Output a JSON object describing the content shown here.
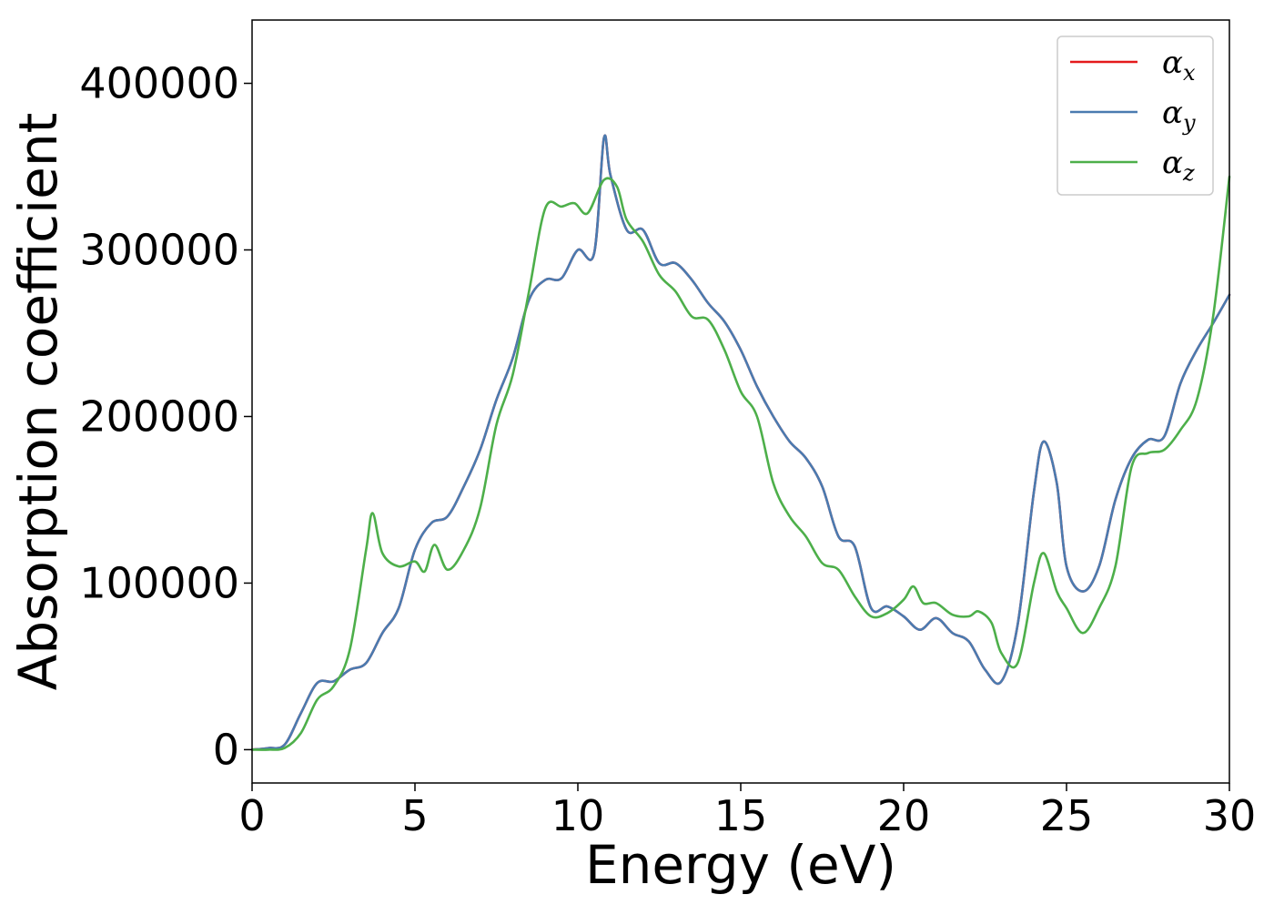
{
  "chart_data": {
    "type": "line",
    "xlabel": "Energy (eV)",
    "ylabel": "Absorption coefficient",
    "xlim": [
      0,
      30
    ],
    "ylim": [
      -20000,
      438000
    ],
    "xticks": [
      0,
      5,
      10,
      15,
      20,
      25,
      30
    ],
    "xtick_labels": [
      "0",
      "5",
      "10",
      "15",
      "20",
      "25",
      "30"
    ],
    "yticks": [
      0,
      100000,
      200000,
      300000,
      400000
    ],
    "ytick_labels": [
      "0",
      "100000",
      "200000",
      "300000",
      "400000"
    ],
    "grid": false,
    "legend_position": "top-right",
    "series": [
      {
        "name": "αx",
        "legend_main": "α",
        "legend_sub": "x",
        "color": "#e41a1c",
        "x": [
          0,
          0.5,
          1,
          1.5,
          2,
          2.5,
          3,
          3.5,
          4,
          4.5,
          5,
          5.5,
          6,
          6.5,
          7,
          7.5,
          8,
          8.5,
          9,
          9.5,
          10,
          10.5,
          10.8,
          11,
          11.5,
          12,
          12.5,
          13,
          13.5,
          14,
          14.5,
          15,
          15.5,
          16,
          16.5,
          17,
          17.5,
          18,
          18.5,
          19,
          19.5,
          20,
          20.5,
          21,
          21.5,
          22,
          22.5,
          23,
          23.5,
          24,
          24.3,
          24.7,
          25,
          25.5,
          26,
          26.5,
          27,
          27.5,
          28,
          28.5,
          29,
          29.5,
          30
        ],
        "values": [
          0,
          1000,
          3000,
          22000,
          40000,
          41000,
          48000,
          52000,
          70000,
          85000,
          120000,
          136000,
          140000,
          158000,
          180000,
          210000,
          235000,
          270000,
          282000,
          283000,
          300000,
          298000,
          367000,
          345000,
          312000,
          312000,
          292000,
          292000,
          282000,
          268000,
          257000,
          240000,
          218000,
          200000,
          185000,
          175000,
          158000,
          128000,
          122000,
          85000,
          86000,
          80000,
          72000,
          79000,
          70000,
          65000,
          48000,
          41000,
          75000,
          155000,
          185000,
          160000,
          110000,
          95000,
          110000,
          150000,
          175000,
          186000,
          188000,
          220000,
          240000,
          256000,
          273000
        ]
      },
      {
        "name": "αy",
        "legend_main": "α",
        "legend_sub": "y",
        "color": "#4a7bb0",
        "x": [
          0,
          0.5,
          1,
          1.5,
          2,
          2.5,
          3,
          3.5,
          4,
          4.5,
          5,
          5.5,
          6,
          6.5,
          7,
          7.5,
          8,
          8.5,
          9,
          9.5,
          10,
          10.5,
          10.8,
          11,
          11.5,
          12,
          12.5,
          13,
          13.5,
          14,
          14.5,
          15,
          15.5,
          16,
          16.5,
          17,
          17.5,
          18,
          18.5,
          19,
          19.5,
          20,
          20.5,
          21,
          21.5,
          22,
          22.5,
          23,
          23.5,
          24,
          24.3,
          24.7,
          25,
          25.5,
          26,
          26.5,
          27,
          27.5,
          28,
          28.5,
          29,
          29.5,
          30
        ],
        "values": [
          0,
          1000,
          3000,
          22000,
          40000,
          41000,
          48000,
          52000,
          70000,
          85000,
          120000,
          136000,
          140000,
          158000,
          180000,
          210000,
          235000,
          270000,
          282000,
          283000,
          300000,
          298000,
          367000,
          345000,
          312000,
          312000,
          292000,
          292000,
          282000,
          268000,
          257000,
          240000,
          218000,
          200000,
          185000,
          175000,
          158000,
          128000,
          122000,
          85000,
          86000,
          80000,
          72000,
          79000,
          70000,
          65000,
          48000,
          41000,
          75000,
          155000,
          185000,
          160000,
          110000,
          95000,
          110000,
          150000,
          175000,
          186000,
          188000,
          220000,
          240000,
          256000,
          273000
        ]
      },
      {
        "name": "αz",
        "legend_main": "α",
        "legend_sub": "z",
        "color": "#4daf4a",
        "x": [
          0,
          0.5,
          1,
          1.5,
          2,
          2.5,
          3,
          3.5,
          3.7,
          4,
          4.5,
          5,
          5.3,
          5.6,
          6,
          6.5,
          7,
          7.5,
          8,
          8.5,
          9,
          9.5,
          9.9,
          10.3,
          10.8,
          11.2,
          11.5,
          12,
          12.5,
          13,
          13.5,
          14,
          14.5,
          15,
          15.5,
          16,
          16.5,
          17,
          17.5,
          18,
          18.5,
          19,
          19.5,
          20,
          20.3,
          20.6,
          21,
          21.5,
          22,
          22.3,
          22.7,
          23,
          23.5,
          24,
          24.3,
          24.7,
          25,
          25.5,
          26,
          26.5,
          27,
          27.5,
          28,
          28.5,
          29,
          29.5,
          30
        ],
        "values": [
          0,
          0,
          1000,
          10000,
          30000,
          38000,
          60000,
          120000,
          142000,
          118000,
          110000,
          113000,
          107000,
          123000,
          108000,
          120000,
          145000,
          195000,
          225000,
          275000,
          325000,
          326000,
          328000,
          322000,
          342000,
          338000,
          318000,
          305000,
          285000,
          275000,
          260000,
          258000,
          240000,
          215000,
          200000,
          160000,
          140000,
          128000,
          112000,
          108000,
          92000,
          80000,
          82000,
          90000,
          98000,
          88000,
          88000,
          81000,
          80000,
          83000,
          76000,
          58000,
          52000,
          100000,
          118000,
          95000,
          85000,
          70000,
          85000,
          110000,
          170000,
          178000,
          180000,
          192000,
          210000,
          260000,
          344000
        ]
      }
    ]
  }
}
